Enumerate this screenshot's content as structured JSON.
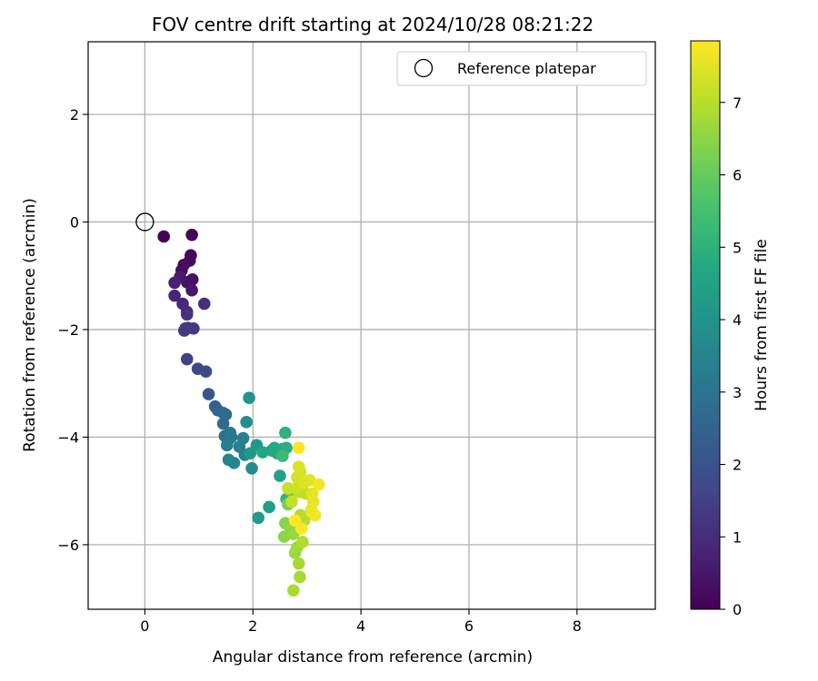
{
  "chart_data": {
    "type": "scatter",
    "title": "FOV centre drift starting at 2024/10/28 08:21:22",
    "xlabel": "Angular distance from reference (arcmin)",
    "ylabel": "Rotation from reference (arcmin)",
    "xlim": [
      -1.05,
      9.45
    ],
    "ylim": [
      -7.2,
      3.35
    ],
    "xticks": [
      "0",
      "2",
      "4",
      "6",
      "8"
    ],
    "yticks": [
      "−6",
      "−4",
      "−2",
      "0",
      "2"
    ],
    "grid": true,
    "legend": {
      "position": "top-right",
      "entries": [
        {
          "label": "Reference platepar",
          "marker": "open-circle"
        }
      ]
    },
    "reference_point": {
      "x": 0,
      "y": 0
    },
    "colorbar": {
      "label": "Hours from first FF file",
      "colormap": "viridis",
      "range": [
        0,
        7.85
      ],
      "ticks": [
        "0",
        "1",
        "2",
        "3",
        "4",
        "5",
        "6",
        "7"
      ]
    },
    "points": [
      {
        "x": 0.35,
        "y": -0.27,
        "c": 0.05
      },
      {
        "x": 0.87,
        "y": -0.24,
        "c": 0.1
      },
      {
        "x": 0.85,
        "y": -0.62,
        "c": 0.15
      },
      {
        "x": 0.83,
        "y": -0.72,
        "c": 0.2
      },
      {
        "x": 0.72,
        "y": -0.8,
        "c": 0.25
      },
      {
        "x": 0.68,
        "y": -0.9,
        "c": 0.3
      },
      {
        "x": 0.88,
        "y": -1.07,
        "c": 0.35
      },
      {
        "x": 0.78,
        "y": -1.12,
        "c": 0.4
      },
      {
        "x": 0.87,
        "y": -1.27,
        "c": 0.5
      },
      {
        "x": 0.65,
        "y": -1.02,
        "c": 0.6
      },
      {
        "x": 0.55,
        "y": -1.13,
        "c": 0.75
      },
      {
        "x": 0.55,
        "y": -1.37,
        "c": 0.85
      },
      {
        "x": 0.7,
        "y": -1.52,
        "c": 0.9
      },
      {
        "x": 0.78,
        "y": -1.67,
        "c": 1.0
      },
      {
        "x": 1.1,
        "y": -1.52,
        "c": 1.05
      },
      {
        "x": 0.78,
        "y": -1.72,
        "c": 1.1
      },
      {
        "x": 0.75,
        "y": -1.98,
        "c": 1.2
      },
      {
        "x": 0.8,
        "y": -1.97,
        "c": 1.25
      },
      {
        "x": 0.9,
        "y": -1.98,
        "c": 1.3
      },
      {
        "x": 0.73,
        "y": -2.02,
        "c": 1.35
      },
      {
        "x": 0.78,
        "y": -2.55,
        "c": 1.55
      },
      {
        "x": 0.98,
        "y": -2.73,
        "c": 1.7
      },
      {
        "x": 1.13,
        "y": -2.78,
        "c": 1.8
      },
      {
        "x": 1.18,
        "y": -3.2,
        "c": 2.1
      },
      {
        "x": 1.3,
        "y": -3.43,
        "c": 2.4
      },
      {
        "x": 1.35,
        "y": -3.5,
        "c": 2.5
      },
      {
        "x": 1.45,
        "y": -3.55,
        "c": 2.6
      },
      {
        "x": 1.5,
        "y": -3.58,
        "c": 2.7
      },
      {
        "x": 1.45,
        "y": -3.75,
        "c": 2.8
      },
      {
        "x": 1.48,
        "y": -3.98,
        "c": 2.9
      },
      {
        "x": 1.55,
        "y": -4.05,
        "c": 3.0
      },
      {
        "x": 1.6,
        "y": -4.0,
        "c": 3.1
      },
      {
        "x": 1.58,
        "y": -3.92,
        "c": 3.2
      },
      {
        "x": 1.52,
        "y": -4.15,
        "c": 3.3
      },
      {
        "x": 1.82,
        "y": -4.02,
        "c": 3.35
      },
      {
        "x": 1.75,
        "y": -4.18,
        "c": 3.4
      },
      {
        "x": 1.85,
        "y": -4.33,
        "c": 3.5
      },
      {
        "x": 1.55,
        "y": -4.42,
        "c": 3.55
      },
      {
        "x": 1.65,
        "y": -4.48,
        "c": 3.6
      },
      {
        "x": 1.98,
        "y": -4.58,
        "c": 3.7
      },
      {
        "x": 1.88,
        "y": -3.72,
        "c": 3.8
      },
      {
        "x": 1.93,
        "y": -3.27,
        "c": 4.0
      },
      {
        "x": 2.07,
        "y": -4.15,
        "c": 4.1
      },
      {
        "x": 1.95,
        "y": -4.3,
        "c": 4.2
      },
      {
        "x": 2.1,
        "y": -5.5,
        "c": 4.3
      },
      {
        "x": 2.3,
        "y": -5.3,
        "c": 4.4
      },
      {
        "x": 2.5,
        "y": -4.72,
        "c": 4.5
      },
      {
        "x": 2.18,
        "y": -4.28,
        "c": 4.6
      },
      {
        "x": 2.35,
        "y": -4.25,
        "c": 4.65
      },
      {
        "x": 2.4,
        "y": -4.2,
        "c": 4.7
      },
      {
        "x": 2.45,
        "y": -4.3,
        "c": 4.75
      },
      {
        "x": 2.55,
        "y": -4.22,
        "c": 4.8
      },
      {
        "x": 2.62,
        "y": -4.2,
        "c": 4.9
      },
      {
        "x": 2.6,
        "y": -3.92,
        "c": 5.0
      },
      {
        "x": 2.62,
        "y": -5.15,
        "c": 5.1
      },
      {
        "x": 2.55,
        "y": -4.35,
        "c": 5.3
      },
      {
        "x": 2.7,
        "y": -5.0,
        "c": 6.0
      },
      {
        "x": 2.65,
        "y": -5.25,
        "c": 6.2
      },
      {
        "x": 2.6,
        "y": -5.6,
        "c": 6.4
      },
      {
        "x": 2.58,
        "y": -5.85,
        "c": 6.5
      },
      {
        "x": 2.7,
        "y": -5.7,
        "c": 6.55
      },
      {
        "x": 2.75,
        "y": -5.8,
        "c": 6.6
      },
      {
        "x": 2.78,
        "y": -6.15,
        "c": 6.65
      },
      {
        "x": 2.82,
        "y": -6.05,
        "c": 6.7
      },
      {
        "x": 2.85,
        "y": -6.35,
        "c": 6.75
      },
      {
        "x": 2.87,
        "y": -6.6,
        "c": 6.8
      },
      {
        "x": 2.75,
        "y": -6.85,
        "c": 6.85
      },
      {
        "x": 2.92,
        "y": -5.95,
        "c": 6.9
      },
      {
        "x": 2.88,
        "y": -5.45,
        "c": 6.95
      },
      {
        "x": 2.95,
        "y": -5.55,
        "c": 7.0
      },
      {
        "x": 2.98,
        "y": -5.05,
        "c": 7.05
      },
      {
        "x": 2.85,
        "y": -5.02,
        "c": 7.1
      },
      {
        "x": 2.72,
        "y": -5.2,
        "c": 7.15
      },
      {
        "x": 2.65,
        "y": -4.95,
        "c": 7.2
      },
      {
        "x": 2.8,
        "y": -4.95,
        "c": 7.25
      },
      {
        "x": 2.82,
        "y": -4.75,
        "c": 7.3
      },
      {
        "x": 2.88,
        "y": -4.65,
        "c": 7.35
      },
      {
        "x": 2.85,
        "y": -4.55,
        "c": 7.4
      },
      {
        "x": 2.95,
        "y": -4.85,
        "c": 7.45
      },
      {
        "x": 3.05,
        "y": -4.8,
        "c": 7.5
      },
      {
        "x": 3.1,
        "y": -5.05,
        "c": 7.55
      },
      {
        "x": 3.12,
        "y": -5.2,
        "c": 7.6
      },
      {
        "x": 3.08,
        "y": -5.35,
        "c": 7.65
      },
      {
        "x": 3.15,
        "y": -5.45,
        "c": 7.7
      },
      {
        "x": 3.22,
        "y": -4.88,
        "c": 7.75
      },
      {
        "x": 2.85,
        "y": -4.2,
        "c": 7.8
      },
      {
        "x": 2.9,
        "y": -5.7,
        "c": 7.82
      },
      {
        "x": 2.78,
        "y": -5.55,
        "c": 7.85
      }
    ]
  }
}
